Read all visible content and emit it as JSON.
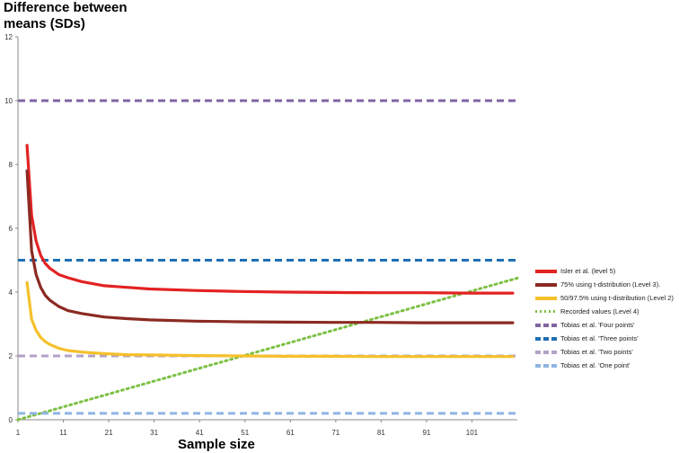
{
  "chart_data": {
    "type": "line",
    "title": "",
    "ylabel": "Difference between means (SDs)",
    "xlabel": "Sample size",
    "xlim": [
      1,
      111
    ],
    "ylim": [
      0,
      12
    ],
    "xticks": [
      "1",
      "11",
      "21",
      "31",
      "41",
      "51",
      "61",
      "71",
      "81",
      "91",
      "101"
    ],
    "yticks": [
      "0",
      "2",
      "4",
      "6",
      "8",
      "10",
      "12"
    ],
    "grid": false,
    "legend": "right",
    "series": [
      {
        "name": "Isler et al. (level 5)",
        "color": "#e32222",
        "style": "solid",
        "x": [
          3,
          4,
          5,
          6,
          7,
          8,
          10,
          12,
          15,
          20,
          25,
          30,
          40,
          50,
          60,
          70,
          80,
          90,
          100,
          110
        ],
        "y": [
          8.6,
          6.4,
          5.6,
          5.15,
          4.9,
          4.75,
          4.55,
          4.45,
          4.33,
          4.2,
          4.15,
          4.1,
          4.05,
          4.02,
          4.0,
          3.99,
          3.98,
          3.98,
          3.97,
          3.97
        ]
      },
      {
        "name": "75% using t-distribution (Level 3).",
        "color": "#8b2a22",
        "style": "solid",
        "x": [
          3,
          4,
          5,
          6,
          7,
          8,
          10,
          12,
          15,
          20,
          25,
          30,
          40,
          50,
          60,
          70,
          80,
          90,
          100,
          110
        ],
        "y": [
          7.8,
          5.3,
          4.55,
          4.15,
          3.9,
          3.75,
          3.55,
          3.42,
          3.33,
          3.22,
          3.17,
          3.13,
          3.09,
          3.07,
          3.06,
          3.05,
          3.05,
          3.04,
          3.04,
          3.04
        ]
      },
      {
        "name": "50/97.5% using t-distribution (Level 2)",
        "color": "#f5c02a",
        "style": "solid",
        "x": [
          3,
          4,
          5,
          6,
          7,
          8,
          10,
          12,
          15,
          20,
          25,
          30,
          40,
          50,
          60,
          70,
          80,
          90,
          100,
          110
        ],
        "y": [
          4.3,
          3.15,
          2.8,
          2.58,
          2.45,
          2.36,
          2.24,
          2.17,
          2.12,
          2.07,
          2.04,
          2.03,
          2.01,
          2.0,
          1.99,
          1.99,
          1.98,
          1.98,
          1.98,
          1.98
        ]
      },
      {
        "name": "Recorded values (Level 4)",
        "color": "#7cc043",
        "style": "dotted",
        "x": [
          1,
          111
        ],
        "y": [
          0,
          4.44
        ]
      },
      {
        "name": "Tobias et al. 'Four points'",
        "color": "#8064a2",
        "style": "dashed",
        "x": [
          1,
          111
        ],
        "y": [
          10,
          10
        ]
      },
      {
        "name": "Tobias et al. 'Three points'",
        "color": "#1f6fb4",
        "style": "dashed",
        "x": [
          1,
          111
        ],
        "y": [
          5,
          5
        ]
      },
      {
        "name": "Tobias et al. 'Two points'",
        "color": "#b3a2c7",
        "style": "dashed",
        "x": [
          1,
          111
        ],
        "y": [
          2,
          2
        ]
      },
      {
        "name": "Tobias et al. 'One point'",
        "color": "#8fb4e3",
        "style": "dashed",
        "x": [
          1,
          111
        ],
        "y": [
          0.2,
          0.2
        ]
      }
    ]
  }
}
